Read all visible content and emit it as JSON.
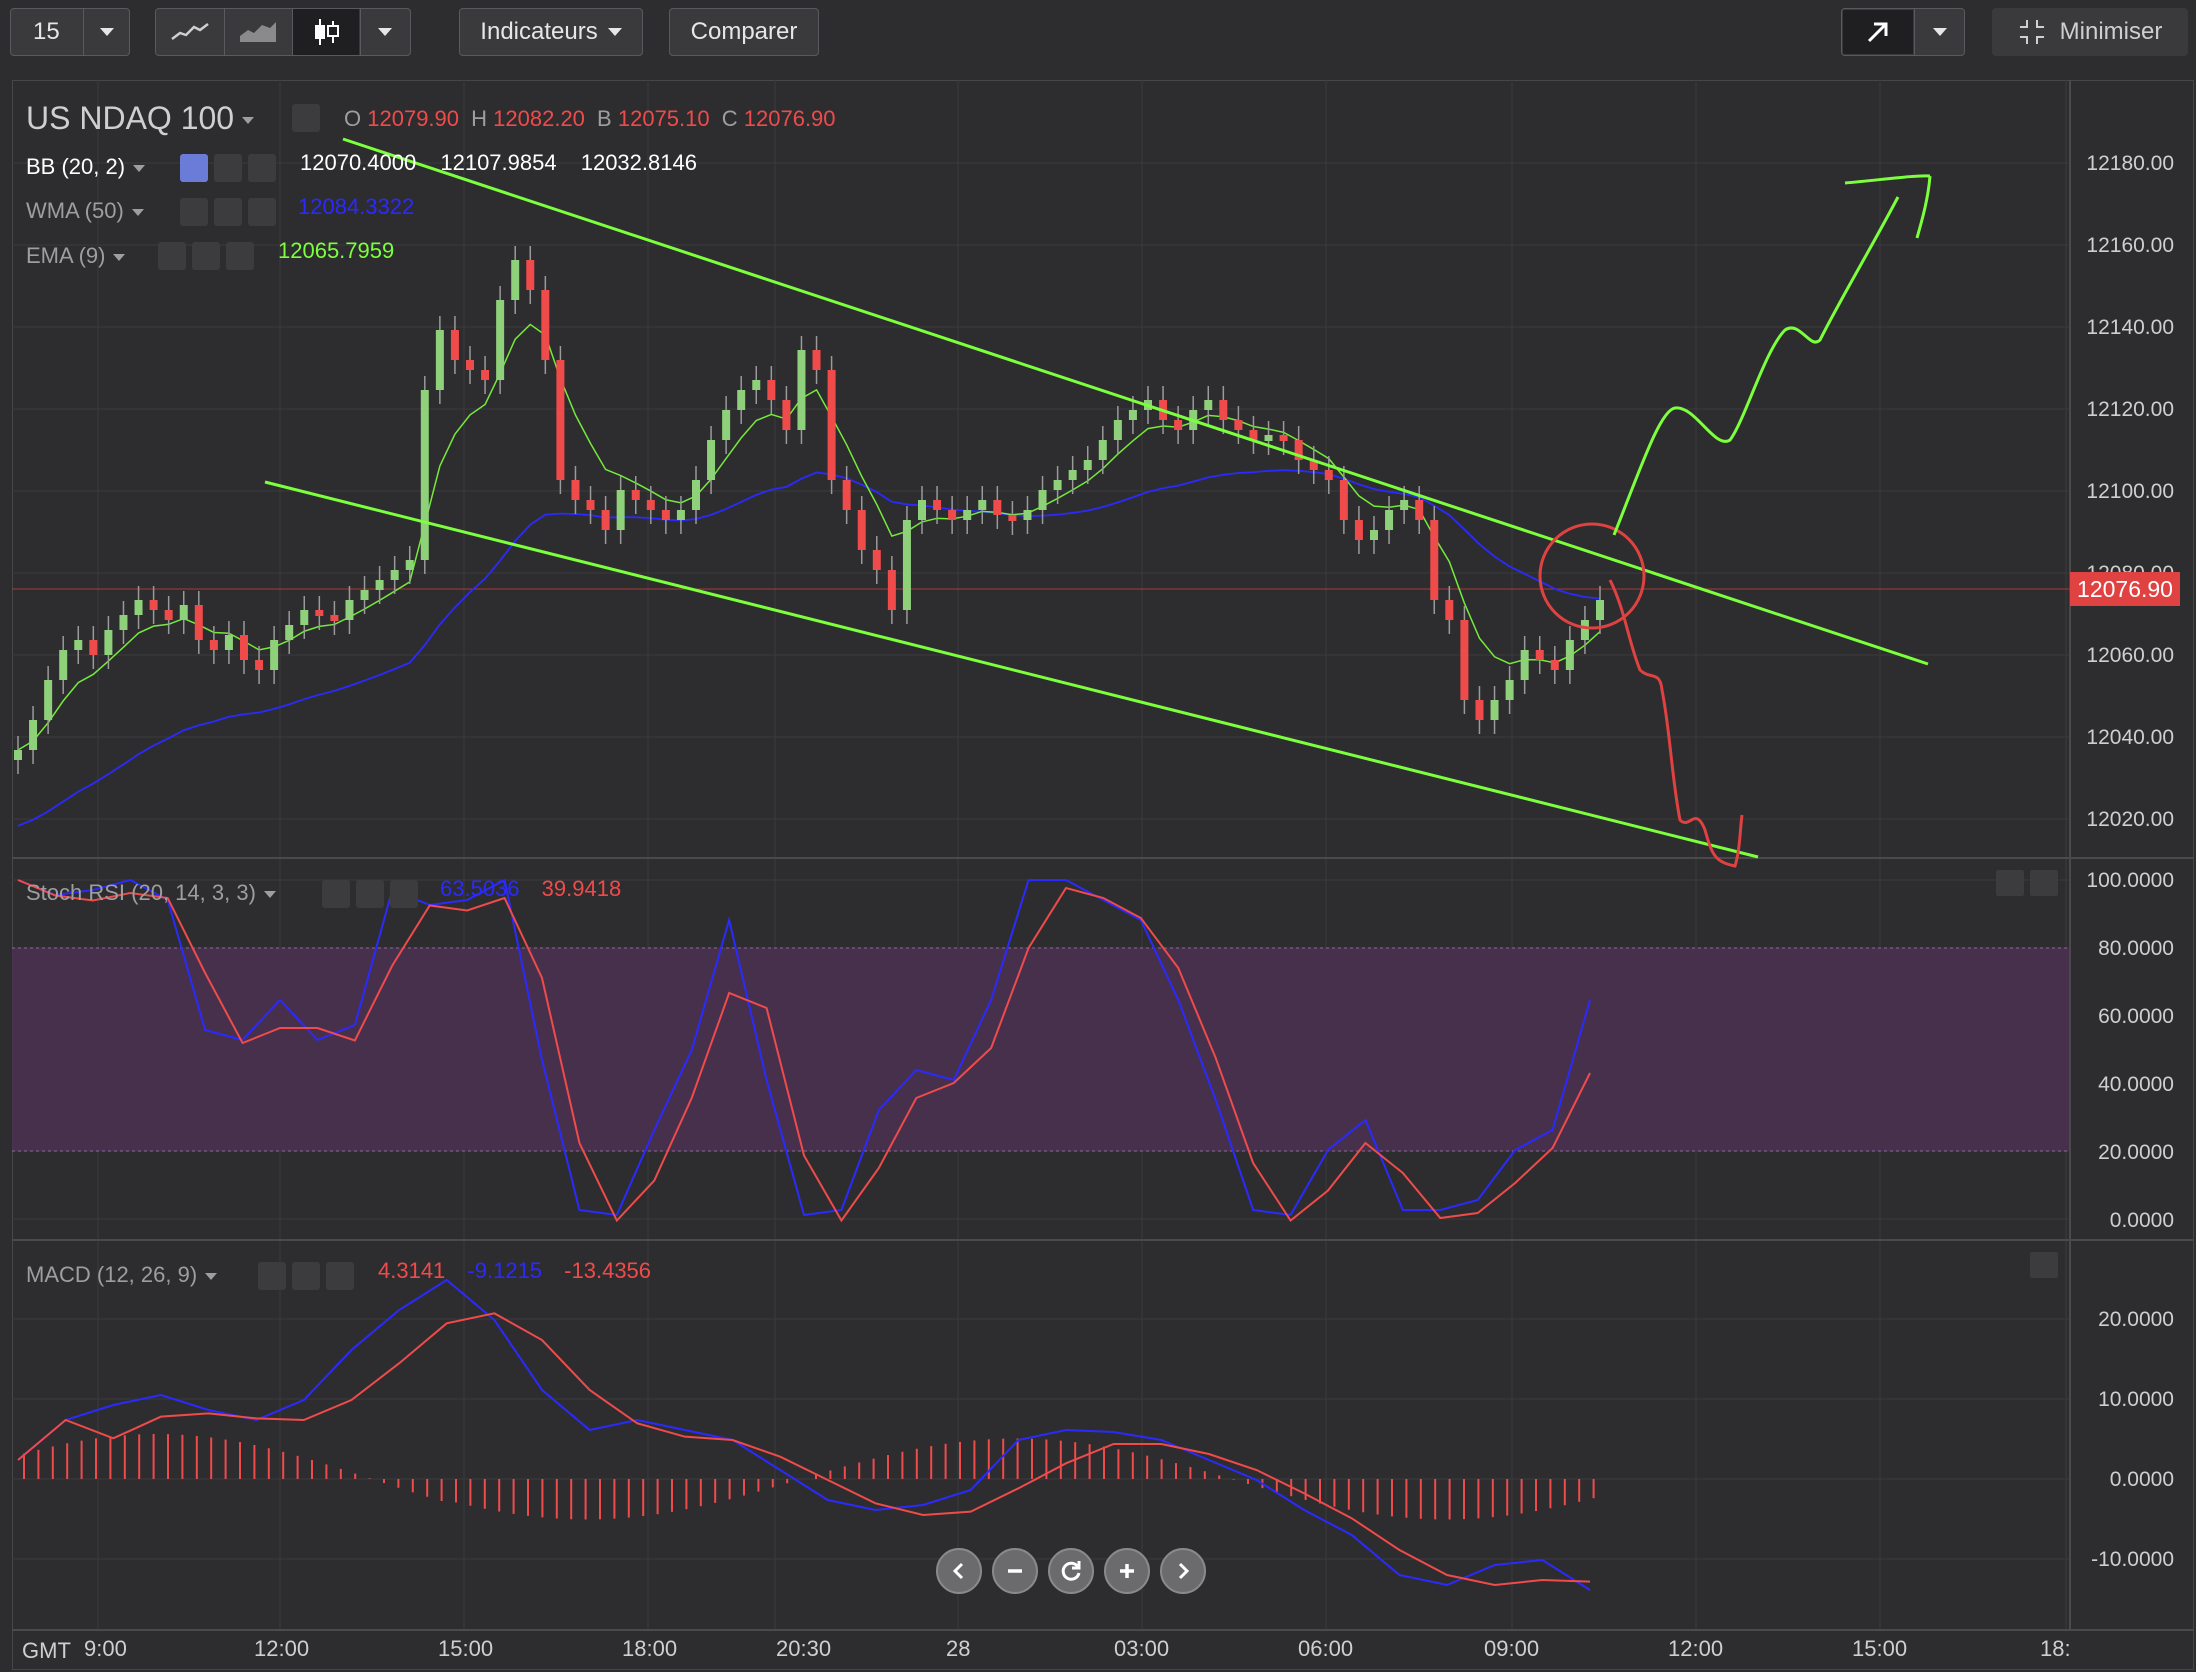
{
  "toolbar": {
    "interval": "15",
    "indicators_label": "Indicateurs",
    "compare_label": "Comparer",
    "minimize_label": "Minimiser",
    "chart_type_icons": [
      "line-chart-icon",
      "area-chart-icon",
      "candlestick-icon"
    ]
  },
  "instrument": {
    "name": "US NDAQ 100",
    "o_label": "O",
    "o": "12079.90",
    "h_label": "H",
    "h": "12082.20",
    "b_label": "B",
    "b": "12075.10",
    "c_label": "C",
    "c": "12076.90"
  },
  "indicators": {
    "bb": {
      "label": "BB (20, 2)",
      "v1": "12070.4000",
      "v2": "12107.9854",
      "v3": "12032.8146"
    },
    "wma": {
      "label": "WMA (50)",
      "v1": "12084.3322"
    },
    "ema": {
      "label": "EMA (9)",
      "v1": "12065.7959"
    },
    "stoch": {
      "label": "Stoch RSI (20, 14, 3, 3)",
      "v1": "63.5036",
      "v2": "39.9418"
    },
    "macd": {
      "label": "MACD (12, 26, 9)",
      "v1": "4.3141",
      "v2": "-9.1215",
      "v3": "-13.4356"
    }
  },
  "price_axis": [
    "12180.00",
    "12160.00",
    "12140.00",
    "12120.00",
    "12100.00",
    "12080.00",
    "12060.00",
    "12040.00",
    "12020.00"
  ],
  "last_price": "12076.90",
  "stoch_axis": [
    "100.0000",
    "80.0000",
    "60.0000",
    "40.0000",
    "20.0000",
    "0.0000"
  ],
  "macd_axis": [
    "20.0000",
    "10.0000",
    "0.0000",
    "-10.0000"
  ],
  "time_axis": {
    "tz": "GMT",
    "labels": [
      "9:00",
      "12:00",
      "15:00",
      "18:00",
      "20:30",
      "28",
      "03:00",
      "06:00",
      "09:00",
      "12:00",
      "15:00",
      "18:"
    ]
  },
  "colors": {
    "bull": "#8fd17a",
    "bear": "#ef4b4b",
    "channel": "#7cff3c",
    "wma": "#2a2aff",
    "ema": "#7cff3c",
    "stoch_band": "#4a3150"
  }
}
